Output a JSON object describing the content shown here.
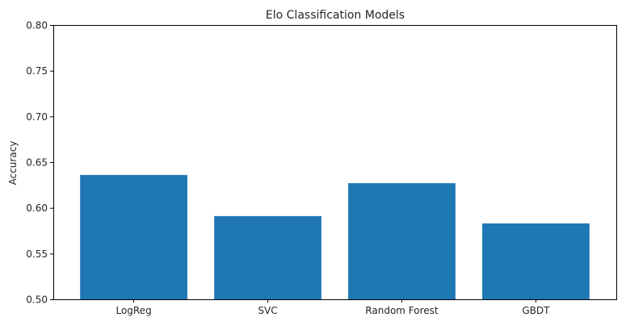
{
  "chart_data": {
    "type": "bar",
    "title": "Elo Classification Models",
    "xlabel": "",
    "ylabel": "Accuracy",
    "categories": [
      "LogReg",
      "SVC",
      "Random Forest",
      "GBDT"
    ],
    "values": [
      0.636,
      0.591,
      0.627,
      0.583
    ],
    "ylim": [
      0.5,
      0.8
    ],
    "yticks": [
      0.5,
      0.55,
      0.6,
      0.65,
      0.7,
      0.75,
      0.8
    ],
    "ytick_labels": [
      "0.50",
      "0.55",
      "0.60",
      "0.65",
      "0.70",
      "0.75",
      "0.80"
    ],
    "grid": false,
    "legend": "none",
    "bar_color": "#1f77b4"
  }
}
